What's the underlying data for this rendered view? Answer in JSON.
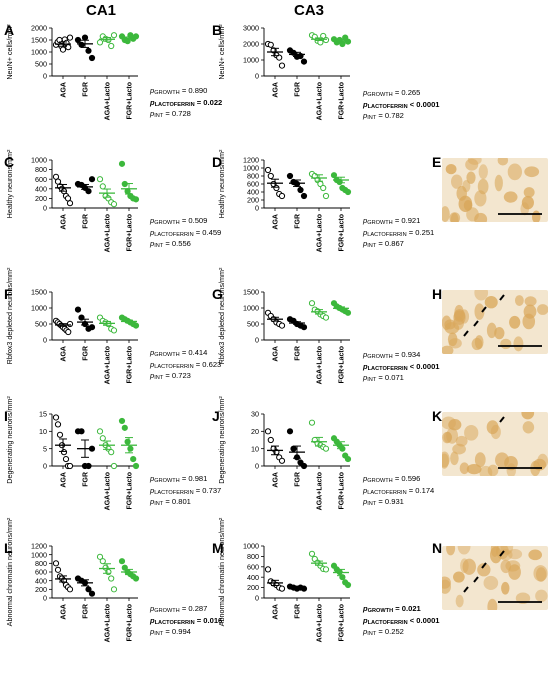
{
  "columns": {
    "left": "CA1",
    "right": "CA3"
  },
  "groups": [
    "AGA",
    "FGR",
    "AGA+Lacto",
    "FGR+Lacto"
  ],
  "colors": {
    "black": "#000000",
    "green": "#3cb83c",
    "tissue": "#d9a75a"
  },
  "chart_data": [
    {
      "id": "A",
      "type": "scatter",
      "ylabel": "NeuN+ cells/mm²",
      "ylim": [
        0,
        2000
      ],
      "ticks": [
        0,
        500,
        1000,
        1500,
        2000
      ],
      "categories": [
        "AGA",
        "FGR",
        "AGA+Lacto",
        "FGR+Lacto"
      ],
      "points": [
        [
          1300,
          1420,
          1500,
          1250,
          1100,
          1520,
          1380,
          1200,
          1600
        ],
        [
          1500,
          1300,
          1600,
          1050,
          750
        ],
        [
          1400,
          1650,
          1550,
          1500,
          1250,
          1700
        ],
        [
          1650,
          1500,
          1450,
          1700,
          1550,
          1650
        ]
      ],
      "means": [
        1330,
        1340,
        1530,
        1570
      ],
      "sem": [
        90,
        150,
        75,
        55
      ],
      "stats": {
        "growth": "0.890",
        "lactoferrin": "0.022",
        "int": "0.728"
      },
      "bold": {
        "growth": false,
        "lactoferrin": true,
        "int": false
      }
    },
    {
      "id": "B",
      "type": "scatter",
      "ylabel": "NeuN+ cells/mm²",
      "ylim": [
        0,
        3000
      ],
      "ticks": [
        0,
        1000,
        2000,
        3000
      ],
      "categories": [
        "AGA",
        "FGR",
        "AGA+Lacto",
        "FGR+Lacto"
      ],
      "points": [
        [
          2000,
          1950,
          1600,
          1300,
          1150,
          650
        ],
        [
          1600,
          1450,
          1200,
          1250,
          900
        ],
        [
          2550,
          2450,
          2200,
          2100,
          2500,
          2250
        ],
        [
          2300,
          2100,
          2250,
          2000,
          2400,
          2150
        ]
      ],
      "means": [
        1500,
        1350,
        2300,
        2200
      ],
      "sem": [
        230,
        130,
        80,
        70
      ],
      "stats": {
        "growth": "0.265",
        "lactoferrin": "< 0.0001",
        "int": "0.782"
      },
      "bold": {
        "growth": false,
        "lactoferrin": true,
        "int": false
      }
    },
    {
      "id": "C",
      "type": "scatter",
      "ylabel": "Healthy neurons/mm²",
      "ylim": [
        0,
        1000
      ],
      "ticks": [
        0,
        200,
        400,
        600,
        800,
        1000
      ],
      "categories": [
        "AGA",
        "FGR",
        "AGA+Lacto",
        "FGR+Lacto"
      ],
      "points": [
        [
          650,
          550,
          450,
          400,
          350,
          250,
          200,
          100
        ],
        [
          500,
          480,
          420,
          350,
          600
        ],
        [
          600,
          450,
          250,
          200,
          120,
          80
        ],
        [
          920,
          500,
          350,
          250,
          200,
          180
        ]
      ],
      "means": [
        420,
        440,
        310,
        400
      ],
      "sem": [
        70,
        50,
        85,
        110
      ],
      "stats": {
        "growth": "0.509",
        "lactoferrin": "0.459",
        "int": "0.556"
      },
      "bold": {
        "growth": false,
        "lactoferrin": false,
        "int": false
      }
    },
    {
      "id": "D",
      "type": "scatter",
      "ylabel": "Healthy neurons/mm²",
      "ylim": [
        0,
        1200
      ],
      "ticks": [
        0,
        200,
        400,
        600,
        800,
        1000,
        1200
      ],
      "categories": [
        "AGA",
        "FGR",
        "AGA+Lacto",
        "FGR+Lacto"
      ],
      "points": [
        [
          950,
          800,
          600,
          500,
          350,
          300
        ],
        [
          800,
          650,
          600,
          450,
          300
        ],
        [
          850,
          800,
          700,
          600,
          500,
          300
        ],
        [
          820,
          700,
          650,
          500,
          450,
          400
        ]
      ],
      "means": [
        620,
        620,
        750,
        700
      ],
      "sem": [
        100,
        80,
        80,
        70
      ],
      "stats": {
        "growth": "0.921",
        "lactoferrin": "0.251",
        "int": "0.867"
      },
      "bold": {
        "growth": false,
        "lactoferrin": false,
        "int": false
      }
    },
    {
      "id": "F",
      "type": "scatter",
      "ylabel": "Rbfox3 depleted neurons/mm²",
      "ylim": [
        0,
        1500
      ],
      "ticks": [
        0,
        500,
        1000,
        1500
      ],
      "categories": [
        "AGA",
        "FGR",
        "AGA+Lacto",
        "FGR+Lacto"
      ],
      "points": [
        [
          600,
          550,
          500,
          450,
          400,
          350,
          300,
          250,
          500
        ],
        [
          950,
          700,
          500,
          350,
          400
        ],
        [
          700,
          600,
          550,
          500,
          350,
          300
        ],
        [
          700,
          650,
          600,
          550,
          500,
          450
        ]
      ],
      "means": [
        470,
        560,
        520,
        580
      ],
      "sem": [
        40,
        90,
        60,
        40
      ],
      "stats": {
        "growth": "0.414",
        "lactoferrin": "0.623",
        "int": "0.723"
      },
      "bold": {
        "growth": false,
        "lactoferrin": false,
        "int": false
      }
    },
    {
      "id": "G",
      "type": "scatter",
      "ylabel": "Rbfox3 depleted neurons/mm²",
      "ylim": [
        0,
        1500
      ],
      "ticks": [
        0,
        500,
        1000,
        1500
      ],
      "categories": [
        "AGA",
        "FGR",
        "AGA+Lacto",
        "FGR+Lacto"
      ],
      "points": [
        [
          850,
          750,
          650,
          550,
          500,
          450
        ],
        [
          650,
          600,
          500,
          450,
          400
        ],
        [
          1150,
          950,
          900,
          800,
          750,
          700
        ],
        [
          1150,
          1050,
          1000,
          950,
          900,
          850
        ]
      ],
      "means": [
        650,
        530,
        880,
        990
      ],
      "sem": [
        60,
        40,
        70,
        45
      ],
      "stats": {
        "growth": "0.934",
        "lactoferrin": "< 0.0001",
        "int": "0.071"
      },
      "bold": {
        "growth": false,
        "lactoferrin": true,
        "int": false
      }
    },
    {
      "id": "I",
      "type": "scatter",
      "ylabel": "Degenerating neurons/mm²",
      "ylim": [
        0,
        15
      ],
      "ticks": [
        0,
        5,
        10,
        15
      ],
      "categories": [
        "AGA",
        "FGR",
        "AGA+Lacto",
        "FGR+Lacto"
      ],
      "points": [
        [
          14,
          12,
          9,
          6,
          4,
          2,
          0,
          0
        ],
        [
          10,
          10,
          0,
          0,
          5
        ],
        [
          10,
          8,
          6,
          5,
          4,
          0
        ],
        [
          13,
          11,
          7,
          5,
          2,
          0
        ]
      ],
      "means": [
        6,
        5,
        6,
        6
      ],
      "sem": [
        1.8,
        2.5,
        1.2,
        2.2
      ],
      "stats": {
        "growth": "0.981",
        "lactoferrin": "0.737",
        "int": "0.801"
      },
      "bold": {
        "growth": false,
        "lactoferrin": false,
        "int": false
      }
    },
    {
      "id": "J",
      "type": "scatter",
      "ylabel": "Degenerating neurons/mm²",
      "ylim": [
        0,
        30
      ],
      "ticks": [
        0,
        10,
        20,
        30
      ],
      "categories": [
        "AGA",
        "FGR",
        "AGA+Lacto",
        "FGR+Lacto"
      ],
      "points": [
        [
          20,
          15,
          10,
          8,
          5,
          3
        ],
        [
          20,
          10,
          5,
          2,
          0
        ],
        [
          25,
          15,
          13,
          12,
          11,
          10
        ],
        [
          16,
          14,
          12,
          10,
          6,
          4
        ]
      ],
      "means": [
        9,
        8,
        14,
        12
      ],
      "sem": [
        2.5,
        3.5,
        2.5,
        2
      ],
      "stats": {
        "growth": "0.596",
        "lactoferrin": "0.174",
        "int": "0.931"
      },
      "bold": {
        "growth": false,
        "lactoferrin": false,
        "int": false
      }
    },
    {
      "id": "L",
      "type": "scatter",
      "ylabel": "Abnormal chromatin neurons/mm²",
      "ylim": [
        0,
        1200
      ],
      "ticks": [
        0,
        200,
        400,
        600,
        800,
        1000,
        1200
      ],
      "categories": [
        "AGA",
        "FGR",
        "AGA+Lacto",
        "FGR+Lacto"
      ],
      "points": [
        [
          800,
          650,
          500,
          450,
          400,
          300,
          250,
          200
        ],
        [
          450,
          400,
          350,
          200,
          100
        ],
        [
          950,
          850,
          700,
          600,
          450,
          200
        ],
        [
          850,
          700,
          600,
          550,
          500,
          450
        ]
      ],
      "means": [
        440,
        350,
        680,
        600
      ],
      "sem": [
        70,
        70,
        110,
        60
      ],
      "stats": {
        "growth": "0.287",
        "lactoferrin": "0.016",
        "int": "0.994"
      },
      "bold": {
        "growth": false,
        "lactoferrin": true,
        "int": false
      }
    },
    {
      "id": "M",
      "type": "scatter",
      "ylabel": "Abnormal chromatin neurons/mm²",
      "ylim": [
        0,
        1000
      ],
      "ticks": [
        0,
        200,
        400,
        600,
        800,
        1000
      ],
      "categories": [
        "AGA",
        "FGR",
        "AGA+Lacto",
        "FGR+Lacto"
      ],
      "points": [
        [
          550,
          320,
          280,
          250,
          200,
          180
        ],
        [
          220,
          200,
          180,
          200,
          180
        ],
        [
          850,
          750,
          680,
          620,
          560,
          550
        ],
        [
          620,
          550,
          500,
          400,
          300,
          250
        ]
      ],
      "means": [
        290,
        200,
        670,
        490
      ],
      "sem": [
        50,
        10,
        40,
        60
      ],
      "stats": {
        "growth": "0.021",
        "lactoferrin": "< 0.0001",
        "int": "0.252"
      },
      "bold": {
        "growth": true,
        "lactoferrin": true,
        "int": false
      }
    }
  ],
  "micrographs": [
    {
      "id": "E",
      "arrows": 0
    },
    {
      "id": "H",
      "arrows": 4
    },
    {
      "id": "K",
      "arrows": 1
    },
    {
      "id": "N",
      "arrows": 4
    }
  ]
}
